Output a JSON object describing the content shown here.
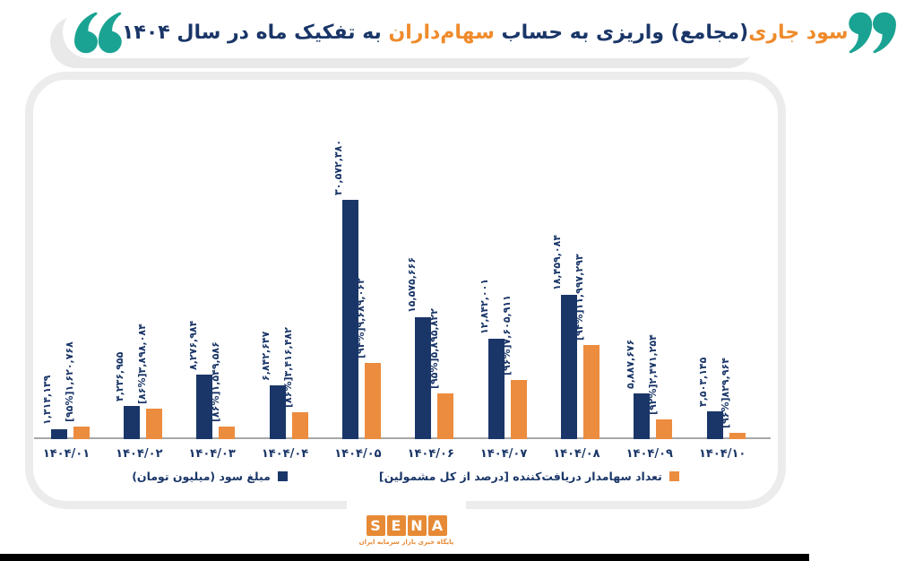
{
  "header": {
    "title_segments": [
      "سود جاری",
      "(مجامع) واریزی به حساب ",
      "سهام‌داران",
      " به تفکیک ماه در سال ۱۴۰۴"
    ]
  },
  "colors": {
    "navy": "#1a3668",
    "orange": "#ec8c3f",
    "title_orange": "#ef8b2c",
    "teal_quotes": "#1aa392",
    "axis_gray": "#a8a8a8",
    "panel_border": "#ececec",
    "logo_orange": "#e78a35"
  },
  "chart_data": {
    "type": "bar",
    "title": "سود جاری(مجامع) واریزی به حساب سهام‌داران به تفکیک ماه در سال ۱۴۰۴",
    "xlabel": "",
    "ylabel": "",
    "grid": false,
    "legend_position": "bottom",
    "ylim": [
      0,
      31000000
    ],
    "categories": [
      "۱۴۰۴/۰۱",
      "۱۴۰۴/۰۲",
      "۱۴۰۴/۰۳",
      "۱۴۰۴/۰۴",
      "۱۴۰۴/۰۵",
      "۱۴۰۴/۰۶",
      "۱۴۰۴/۰۷",
      "۱۴۰۴/۰۸",
      "۱۴۰۴/۰۹",
      "۱۴۰۴/۱۰"
    ],
    "series": [
      {
        "name": "مبلغ سود (میلیون تومان)",
        "color": "#1a3668",
        "values": [
          1314139,
          4236955,
          8276984,
          6842647,
          30572380,
          15575666,
          12842001,
          18459084,
          5887676,
          3503145
        ],
        "labels": [
          "۱,۳۱۴,۱۳۹",
          "۴,۲۳۶,۹۵۵",
          "۸,۲۷۶,۹۸۴",
          "۶,۸۴۲,۶۴۷",
          "۳۰,۵۷۲,۳۸۰",
          "۱۵,۵۷۵,۶۶۶",
          "۱۲,۸۴۲,۰۰۱",
          "۱۸,۴۵۹,۰۸۴",
          "۵,۸۸۷,۶۷۶",
          "۳,۵۰۳,۱۴۵"
        ]
      },
      {
        "name": "تعداد سهامدار دریافت‌کننده [درصد از کل مشمولین]",
        "color": "#ec8c3f",
        "values": [
          1620768,
          3898084,
          1549586,
          3416482,
          9689062,
          5895822,
          7605911,
          11997293,
          2471254,
          829964
        ],
        "percent_of_total": [
          95,
          86,
          86,
          86,
          94,
          95,
          96,
          94,
          92,
          96
        ],
        "labels": [
          "[۹۵%]۱,۶۲۰,۷۶۸",
          "[۸۶%]۳,۸۹۸,۰۸۴",
          "[۸۶%]۱,۵۴۹,۵۸۶",
          "[۸۶%]۳,۴۱۶,۴۸۲",
          "[۹۴%]۹,۶۸۹,۰۶۲",
          "[۹۵%]۵,۸۹۵,۸۲۲",
          "[۹۶%]۷,۶۰۵,۹۱۱",
          "[۹۴%]۱۱,۹۹۷,۲۹۳",
          "[۹۲%]۲,۴۷۱,۲۵۴",
          "[۹۶%]۸۲۹,۹۶۴"
        ]
      }
    ]
  },
  "footer": {
    "logo_letters": [
      "S",
      "E",
      "N",
      "A"
    ],
    "logo_subtitle": "پایگاه خبری بازار سرمایه ایران"
  }
}
